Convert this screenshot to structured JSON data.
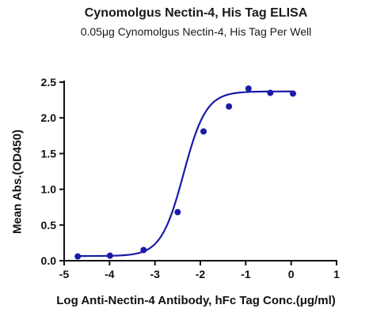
{
  "chart_data": {
    "type": "scatter",
    "title": "Cynomolgus Nectin-4, His Tag ELISA",
    "subtitle": "0.05μg Cynomolgus Nectin-4, His Tag Per Well",
    "xlabel": "Log Anti-Nectin-4 Antibody, hFc Tag Conc.(μg/ml)",
    "ylabel": "Mean Abs.(OD450)",
    "xlim": [
      -5,
      1
    ],
    "ylim": [
      0,
      2.5
    ],
    "x_ticks": [
      "-5",
      "-4",
      "-3",
      "-2",
      "-1",
      "0",
      "1"
    ],
    "y_ticks": [
      "0.0",
      "0.5",
      "1.0",
      "1.5",
      "2.0",
      "2.5"
    ],
    "grid": false,
    "color": "#1a1aa6",
    "series": [
      {
        "points": [
          {
            "x": -4.7,
            "y": 0.06
          },
          {
            "x": -3.99,
            "y": 0.07
          },
          {
            "x": -3.25,
            "y": 0.15
          },
          {
            "x": -2.5,
            "y": 0.68
          },
          {
            "x": -1.93,
            "y": 1.81
          },
          {
            "x": -1.37,
            "y": 2.16
          },
          {
            "x": -0.94,
            "y": 2.41
          },
          {
            "x": -0.46,
            "y": 2.35
          },
          {
            "x": 0.04,
            "y": 2.34
          }
        ],
        "fit": {
          "model": "4PL",
          "bottom": 0.065,
          "top": 2.37,
          "logEC50": -2.37,
          "hill": 1.75
        }
      }
    ]
  }
}
